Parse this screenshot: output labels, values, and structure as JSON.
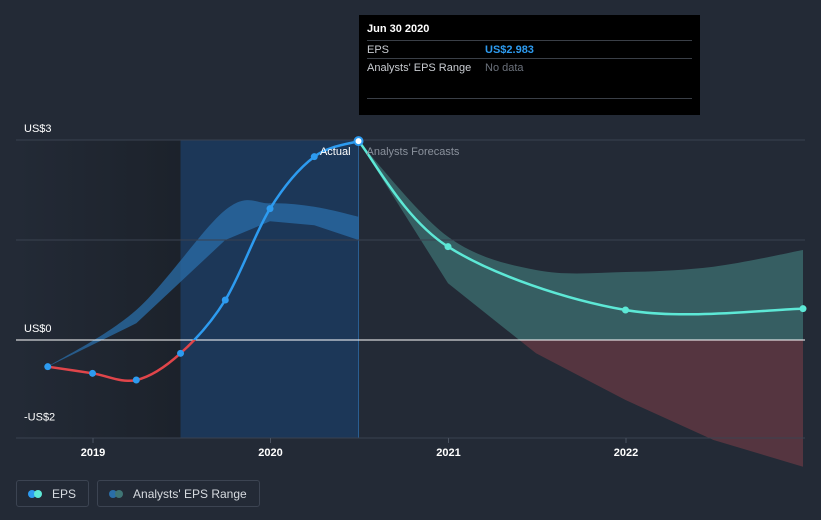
{
  "tooltip": {
    "date": "Jun 30 2020",
    "eps_label": "EPS",
    "eps_value": "US$2.983",
    "range_label": "Analysts' EPS Range",
    "range_value": "No data"
  },
  "legend": {
    "eps_label": "EPS",
    "range_label": "Analysts' EPS Range"
  },
  "colors": {
    "background": "#232a36",
    "actual_past_band": "#1b3a5e",
    "eps_actual": "#2d9bf0",
    "eps_negative": "#e0454a",
    "eps_forecast": "#5de8d6",
    "range_band_actual": "#2a6ea8",
    "range_band_forecast_positive": "#3f7575",
    "range_band_forecast_negative": "#6b3b45"
  },
  "chart_data": {
    "type": "line",
    "y_tick_labels": [
      "US$3",
      "US$0",
      "-US$2"
    ],
    "x_tick_labels": [
      "2019",
      "2020",
      "2021",
      "2022"
    ],
    "ylim": [
      -2,
      3
    ],
    "region_labels": {
      "actual": "Actual",
      "forecast": "Analysts Forecasts"
    },
    "series": [
      {
        "kind": "eps_actual",
        "points": [
          [
            "2018-09-30",
            -0.4
          ],
          [
            "2018-12-31",
            -0.5
          ],
          [
            "2019-03-31",
            -0.6
          ],
          [
            "2019-06-30",
            -0.2
          ],
          [
            "2019-09-30",
            0.6
          ],
          [
            "2019-12-31",
            1.97
          ],
          [
            "2020-03-31",
            2.75
          ],
          [
            "2020-06-30",
            2.983
          ]
        ]
      },
      {
        "kind": "eps_forecast",
        "points": [
          [
            "2020-06-30",
            2.983
          ],
          [
            "2020-12-31",
            1.4
          ],
          [
            "2021-12-31",
            0.45
          ],
          [
            "2022-12-31",
            0.47
          ]
        ]
      }
    ],
    "range_band_actual": {
      "x": [
        "2018-09-30",
        "2019-03-31",
        "2019-09-30",
        "2019-12-31",
        "2020-03-31",
        "2020-06-30"
      ],
      "low": [
        -0.4,
        0.25,
        1.5,
        1.78,
        1.72,
        1.5
      ],
      "high": [
        -0.4,
        0.45,
        1.95,
        2.05,
        2.0,
        1.85
      ]
    },
    "range_band_forecast": {
      "x": [
        "2020-06-30",
        "2020-12-31",
        "2021-06-30",
        "2021-12-31",
        "2022-06-30",
        "2022-12-31"
      ],
      "low": [
        2.983,
        0.85,
        -0.2,
        -0.9,
        -1.5,
        -1.9
      ],
      "high": [
        2.983,
        1.55,
        1.05,
        1.02,
        1.1,
        1.35
      ]
    },
    "grid": true,
    "legend_position": "bottom-left"
  }
}
